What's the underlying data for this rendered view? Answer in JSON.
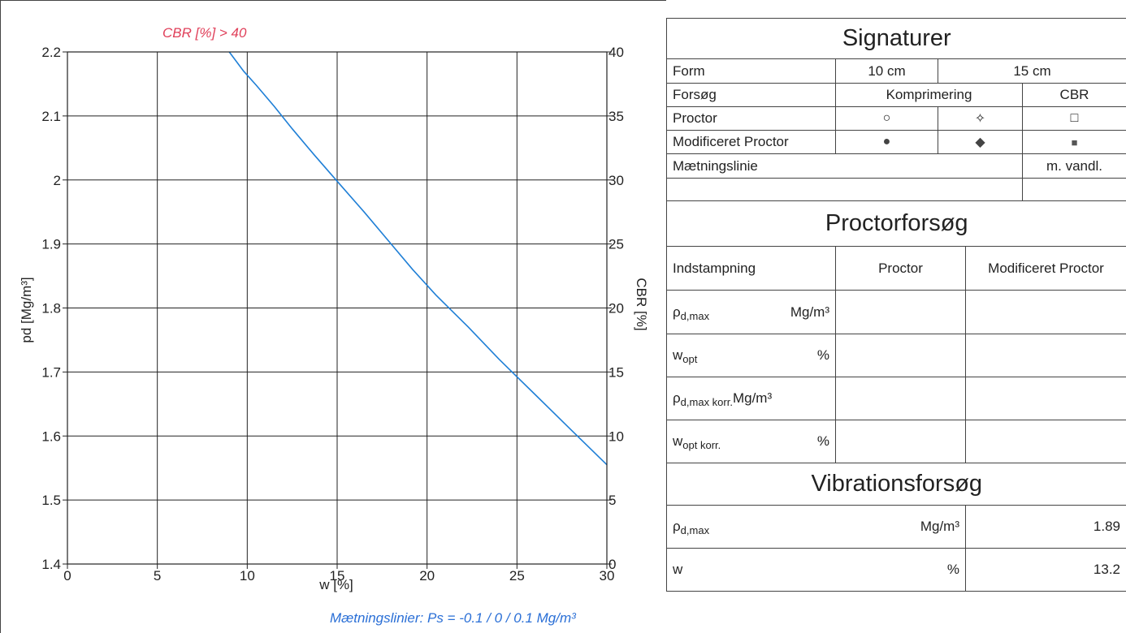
{
  "chart_data": {
    "type": "line",
    "title": "",
    "annotation": "CBR [%] > 40",
    "footnote": "Mætningslinier: Ps = -0.1 / 0 / 0.1 Mg/m³",
    "xlabel": "w [%]",
    "ylabel": "pd [Mg/m³]",
    "y2label": "CBR [%]",
    "xlim": [
      0,
      30
    ],
    "ylim": [
      1.4,
      2.2
    ],
    "y2lim": [
      0,
      40
    ],
    "grid": true,
    "xticks": [
      0,
      5,
      10,
      15,
      20,
      25,
      30
    ],
    "xtick_labels": [
      "0",
      "5",
      "10",
      "15",
      "20",
      "25",
      "30"
    ],
    "yticks": [
      1.4,
      1.5,
      1.6,
      1.7,
      1.8,
      1.9,
      2.0,
      2.1,
      2.2
    ],
    "ytick_labels": [
      "1.4",
      "1.5",
      "1.6",
      "1.7",
      "1.8",
      "1.9",
      "2",
      "2.1",
      "2.2"
    ],
    "y2ticks": [
      0,
      5,
      10,
      15,
      20,
      25,
      30,
      35,
      40
    ],
    "y2tick_labels": [
      "0",
      "5",
      "10",
      "15",
      "20",
      "25",
      "30",
      "35",
      "40"
    ],
    "line_color": "#1f7fd6",
    "series": [
      {
        "x": [
          9.0,
          9.8,
          10.5,
          11.5,
          12.5,
          13.7,
          15.0,
          16.5,
          18.0,
          19.2,
          20.5,
          22.3,
          24.0,
          26.0,
          28.0,
          30.0
        ],
        "y": [
          2.2,
          2.17,
          2.148,
          2.115,
          2.08,
          2.04,
          1.998,
          1.95,
          1.9,
          1.86,
          1.82,
          1.77,
          1.72,
          1.665,
          1.61,
          1.555
        ]
      }
    ]
  },
  "signaturer": {
    "title": "Signaturer",
    "form_label": "Form",
    "form_10": "10 cm",
    "form_15": "15 cm",
    "forsog_label": "Forsøg",
    "komprimering": "Komprimering",
    "cbr": "CBR",
    "proctor_label": "Proctor",
    "proctor_sym": [
      "○",
      "✧",
      "□"
    ],
    "mod_label": "Modificeret Proctor",
    "mod_sym": [
      "●",
      "◆",
      "■"
    ],
    "maetning_label": "Mætningslinie",
    "vandl": "m. vandl."
  },
  "proctor": {
    "title": "Proctorforsøg",
    "col_indstampning": "Indstampning",
    "col_proctor": "Proctor",
    "col_modificeret": "Modificeret Proctor",
    "rows": [
      {
        "sym": "ρ",
        "sub": "d,max",
        "unit": "Mg/m³"
      },
      {
        "sym": "w",
        "sub": "opt",
        "unit": "%"
      },
      {
        "sym": "ρ",
        "sub": "d,max korr.",
        "unit": "Mg/m³"
      },
      {
        "sym": "w",
        "sub": "opt korr.",
        "unit": "%"
      }
    ]
  },
  "vibration": {
    "title": "Vibrationsforsøg",
    "rows": [
      {
        "sym": "ρ",
        "sub": "d,max",
        "unit": "Mg/m³",
        "value": "1.89"
      },
      {
        "sym": "w",
        "sub": "",
        "unit": "%",
        "value": "13.2"
      }
    ]
  }
}
